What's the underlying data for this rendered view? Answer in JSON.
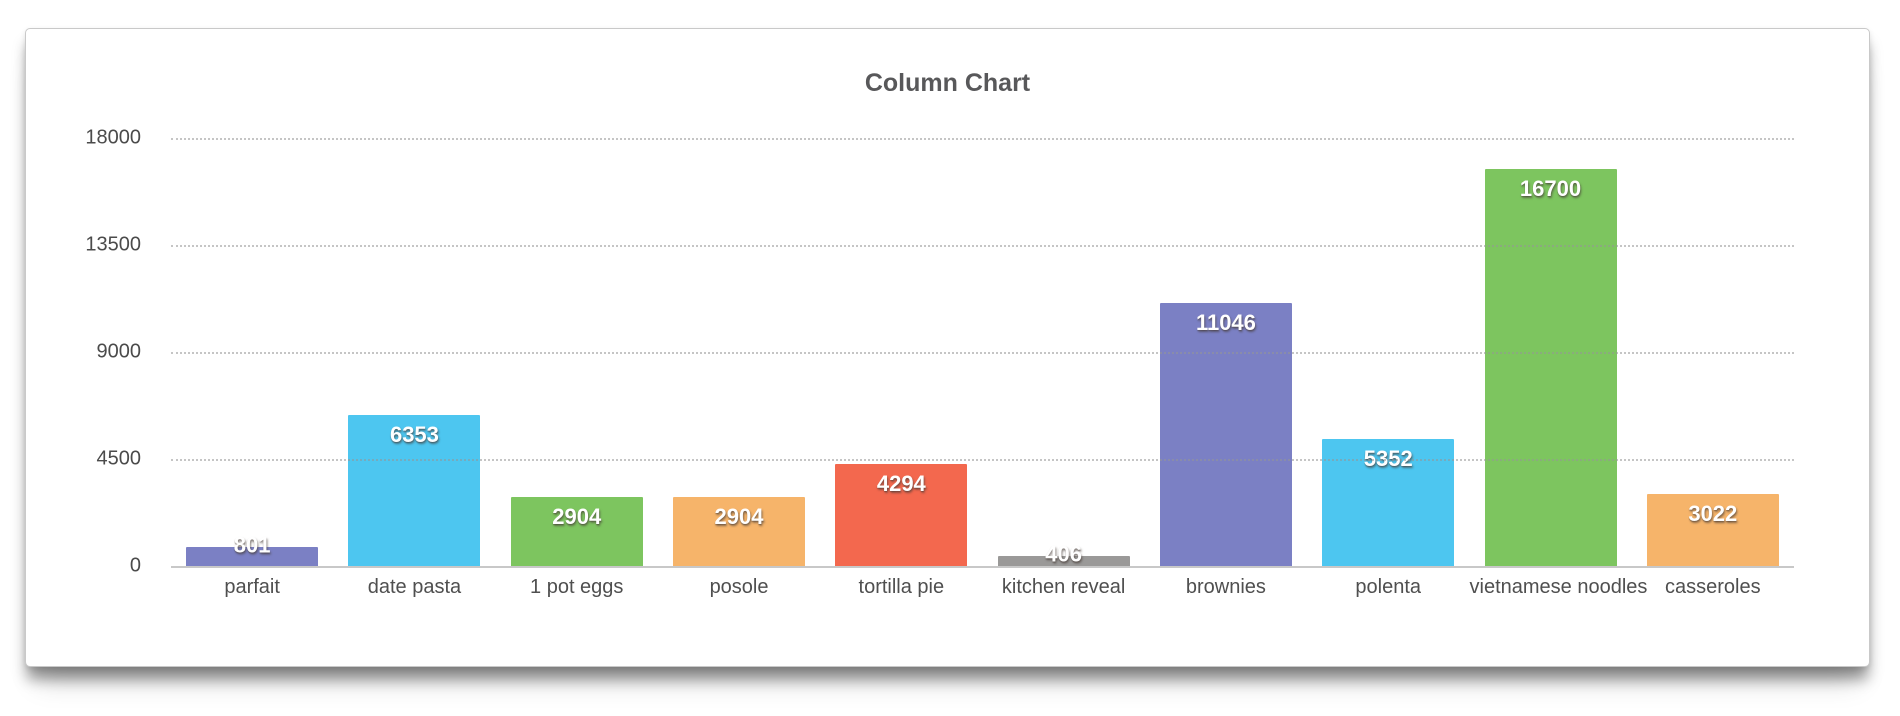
{
  "chart_data": {
    "type": "bar",
    "title": "Column Chart",
    "categories": [
      "parfait",
      "date pasta",
      "1 pot eggs",
      "posole",
      "tortilla pie",
      "kitchen reveal",
      "brownies",
      "polenta",
      "vietnamese noodles",
      "casseroles"
    ],
    "values": [
      801,
      6353,
      2904,
      2904,
      4294,
      406,
      11046,
      5352,
      16700,
      3022
    ],
    "bar_colors": [
      "#7b80c4",
      "#4dc6f0",
      "#7dc55f",
      "#f6b46a",
      "#f3684e",
      "#9a9998",
      "#7b80c4",
      "#4dc6f0",
      "#7dc55f",
      "#f6b46a"
    ],
    "value_label_color": "#ffffff",
    "y_ticks": [
      0,
      4500,
      9000,
      13500,
      18000
    ],
    "ylim": [
      0,
      18000
    ],
    "xlabel": "",
    "ylabel": "",
    "grid": "horizontal-dotted",
    "legend": "none"
  },
  "colors": {
    "card_background": "#ffffff",
    "card_border": "#c9c9c9",
    "title_text": "#58585a",
    "tick_text": "#4b4b4b",
    "category_text": "#4f4f4f",
    "gridline": "#c4c4c4",
    "baseline": "#c8c8c8"
  }
}
